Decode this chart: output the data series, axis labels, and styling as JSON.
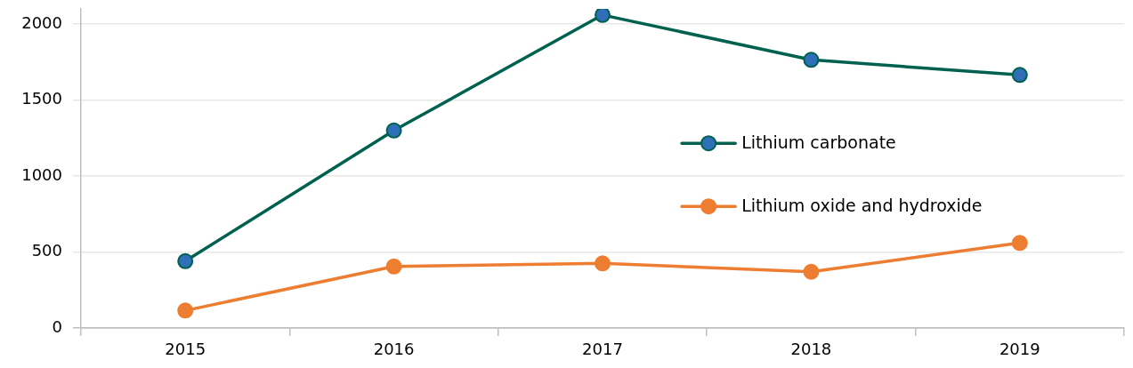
{
  "chart_data": {
    "type": "line",
    "categories": [
      "2015",
      "2016",
      "2017",
      "2018",
      "2019"
    ],
    "series": [
      {
        "name": "Lithium carbonate",
        "color": "#00614f",
        "colors": [
          "#2e6fb7",
          "#2e6fb7",
          "#2e6fb7",
          "#2e6fb7",
          "#2e6fb7"
        ],
        "values": [
          440,
          1300,
          2060,
          1765,
          1665
        ]
      },
      {
        "name": "Lithium oxide and hydroxide",
        "color": "#ed7d31",
        "values": [
          115,
          405,
          425,
          370,
          560
        ]
      }
    ],
    "ylim": [
      0,
      2100
    ],
    "yticks": [
      0,
      500,
      1000,
      1500,
      2000
    ],
    "grid": "y",
    "legend": "right",
    "marker": "circle",
    "line_style": "solid"
  }
}
